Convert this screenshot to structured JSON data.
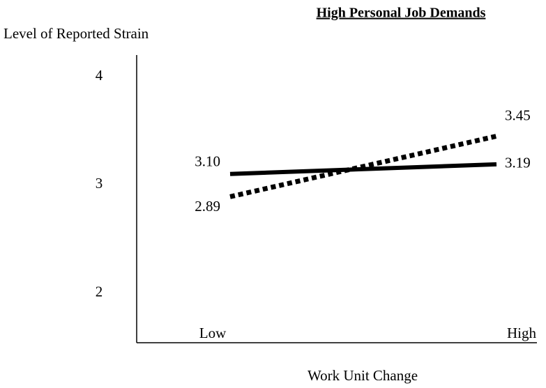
{
  "chart_data": {
    "type": "line",
    "title": "High Personal Job Demands",
    "y_label": "Level of Reported Strain",
    "x_label": "Work Unit Change",
    "categories": [
      "Low",
      "High"
    ],
    "series": [
      {
        "color": "#000000",
        "line_style": "solid",
        "values": [
          3.1,
          3.19
        ],
        "value_labels": [
          "3.10",
          "3.19"
        ]
      },
      {
        "color": "#000000",
        "line_style": "dotted",
        "values": [
          2.89,
          3.45
        ],
        "value_labels": [
          "2.89",
          "3.45"
        ]
      }
    ],
    "ylim": [
      1.54,
      4.2
    ],
    "yticks": [
      2,
      3,
      4
    ],
    "grid": false
  }
}
